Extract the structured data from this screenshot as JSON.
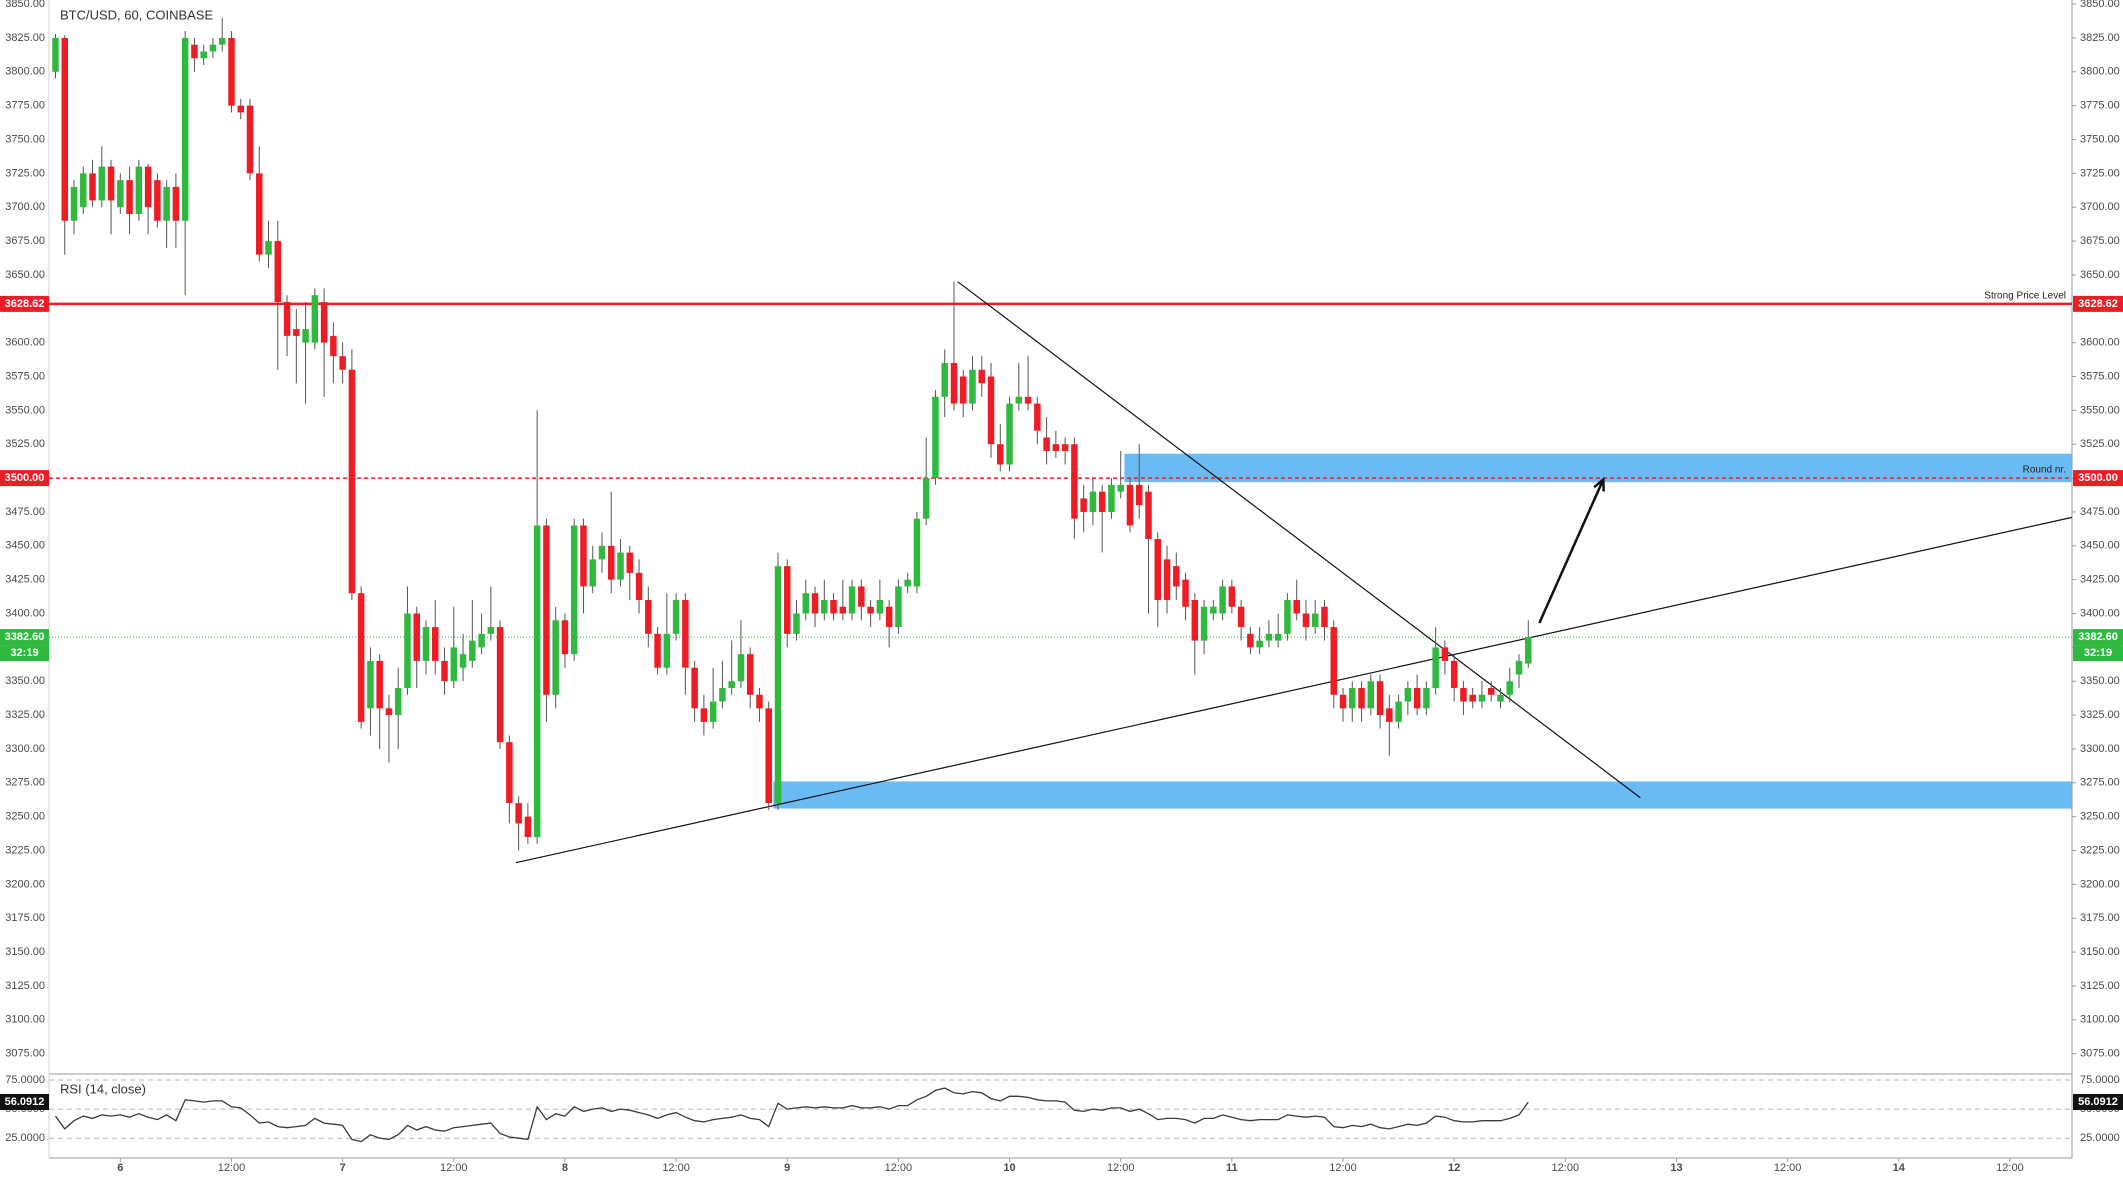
{
  "chart_data": {
    "type": "candlestick",
    "title": "BTC/USD, 60, COINBASE",
    "up_color": "#2fb93f",
    "down_color": "#ee1c24",
    "open": [
      3800,
      3825,
      3690,
      3700,
      3725,
      3705,
      3730,
      3700,
      3720,
      3695,
      3730,
      3720,
      3690,
      3715,
      3690,
      3820,
      3810,
      3815,
      3820,
      3825,
      3775,
      3775,
      3725,
      3665,
      3675,
      3630,
      3610,
      3600,
      3600,
      3630,
      3605,
      3590,
      3580,
      3415,
      3330,
      3365,
      3330,
      3325,
      3345,
      3400,
      3365,
      3390,
      3365,
      3350,
      3360,
      3365,
      3375,
      3385,
      3390,
      3305,
      3260,
      3250,
      3235,
      3465,
      3340,
      3395,
      3370,
      3465,
      3420,
      3440,
      3450,
      3425,
      3445,
      3430,
      3410,
      3385,
      3360,
      3385,
      3410,
      3360,
      3330,
      3320,
      3335,
      3345,
      3350,
      3370,
      3340,
      3330,
      3260,
      3435,
      3385,
      3400,
      3415,
      3400,
      3410,
      3405,
      3400,
      3420,
      3405,
      3400,
      3405,
      3390,
      3420,
      3420,
      3470,
      3500,
      3560,
      3585,
      3575,
      3555,
      3580,
      3575,
      3525,
      3510,
      3555,
      3560,
      3555,
      3530,
      3525,
      3525,
      3525,
      3485,
      3475,
      3490,
      3475,
      3490,
      3495,
      3495,
      3490,
      3455,
      3440,
      3435,
      3425,
      3410,
      3380,
      3400,
      3400,
      3420,
      3405,
      3385,
      3375,
      3380,
      3380,
      3385,
      3410,
      3400,
      3390,
      3405,
      3390,
      3340,
      3330,
      3345,
      3330,
      3350,
      3330,
      3320,
      3335,
      3345,
      3330,
      3345,
      3375,
      3365,
      3345,
      3340,
      3335,
      3345,
      3335,
      3340,
      3355,
      3363
    ],
    "high": [
      3828,
      3827,
      3720,
      3730,
      3735,
      3745,
      3735,
      3725,
      3730,
      3735,
      3732,
      3725,
      3720,
      3725,
      3830,
      3825,
      3820,
      3825,
      3840,
      3830,
      3780,
      3780,
      3745,
      3690,
      3690,
      3635,
      3625,
      3630,
      3640,
      3640,
      3615,
      3600,
      3595,
      3420,
      3375,
      3370,
      3340,
      3360,
      3420,
      3405,
      3395,
      3410,
      3375,
      3405,
      3385,
      3410,
      3400,
      3420,
      3395,
      3310,
      3265,
      3260,
      3550,
      3470,
      3405,
      3400,
      3470,
      3470,
      3450,
      3460,
      3490,
      3455,
      3450,
      3440,
      3420,
      3390,
      3415,
      3415,
      3415,
      3365,
      3340,
      3360,
      3365,
      3380,
      3395,
      3375,
      3345,
      3335,
      3445,
      3440,
      3410,
      3425,
      3420,
      3425,
      3415,
      3425,
      3425,
      3425,
      3410,
      3425,
      3410,
      3425,
      3430,
      3475,
      3530,
      3565,
      3595,
      3645,
      3580,
      3590,
      3590,
      3585,
      3540,
      3560,
      3585,
      3590,
      3560,
      3545,
      3535,
      3530,
      3530,
      3495,
      3500,
      3495,
      3500,
      3520,
      3500,
      3525,
      3495,
      3460,
      3450,
      3445,
      3430,
      3415,
      3410,
      3410,
      3425,
      3425,
      3410,
      3390,
      3390,
      3395,
      3400,
      3415,
      3425,
      3410,
      3410,
      3410,
      3395,
      3345,
      3350,
      3350,
      3355,
      3355,
      3340,
      3340,
      3350,
      3355,
      3350,
      3390,
      3380,
      3370,
      3350,
      3345,
      3350,
      3350,
      3345,
      3360,
      3370,
      3395
    ],
    "low": [
      3795,
      3665,
      3680,
      3695,
      3700,
      3700,
      3680,
      3695,
      3680,
      3690,
      3680,
      3685,
      3670,
      3670,
      3635,
      3800,
      3805,
      3810,
      3815,
      3770,
      3765,
      3720,
      3660,
      3655,
      3580,
      3590,
      3570,
      3555,
      3595,
      3560,
      3570,
      3570,
      3410,
      3315,
      3310,
      3300,
      3290,
      3300,
      3340,
      3345,
      3355,
      3355,
      3340,
      3345,
      3350,
      3360,
      3370,
      3380,
      3300,
      3245,
      3225,
      3230,
      3230,
      3320,
      3330,
      3360,
      3365,
      3400,
      3415,
      3430,
      3415,
      3420,
      3410,
      3400,
      3375,
      3355,
      3355,
      3380,
      3340,
      3320,
      3310,
      3315,
      3330,
      3340,
      3345,
      3330,
      3320,
      3255,
      3255,
      3375,
      3380,
      3395,
      3390,
      3395,
      3395,
      3395,
      3395,
      3395,
      3390,
      3395,
      3375,
      3385,
      3415,
      3415,
      3465,
      3495,
      3545,
      3550,
      3545,
      3550,
      3560,
      3515,
      3505,
      3505,
      3550,
      3550,
      3525,
      3510,
      3515,
      3510,
      3455,
      3460,
      3465,
      3445,
      3470,
      3485,
      3460,
      3470,
      3400,
      3390,
      3400,
      3410,
      3395,
      3355,
      3370,
      3395,
      3395,
      3400,
      3380,
      3370,
      3370,
      3375,
      3375,
      3380,
      3395,
      3380,
      3385,
      3380,
      3330,
      3320,
      3320,
      3320,
      3325,
      3315,
      3295,
      3315,
      3325,
      3325,
      3325,
      3340,
      3355,
      3335,
      3325,
      3330,
      3330,
      3335,
      3330,
      3335,
      3345,
      3360
    ],
    "close": [
      3825,
      3690,
      3715,
      3725,
      3705,
      3730,
      3705,
      3720,
      3695,
      3730,
      3700,
      3690,
      3715,
      3690,
      3825,
      3810,
      3815,
      3820,
      3825,
      3775,
      3770,
      3725,
      3665,
      3675,
      3630,
      3605,
      3605,
      3610,
      3635,
      3600,
      3590,
      3580,
      3415,
      3320,
      3365,
      3330,
      3325,
      3345,
      3400,
      3365,
      3390,
      3365,
      3350,
      3375,
      3370,
      3380,
      3385,
      3390,
      3305,
      3260,
      3245,
      3235,
      3465,
      3340,
      3395,
      3370,
      3465,
      3420,
      3440,
      3450,
      3425,
      3445,
      3430,
      3410,
      3385,
      3360,
      3385,
      3410,
      3360,
      3330,
      3320,
      3335,
      3345,
      3350,
      3370,
      3340,
      3330,
      3260,
      3435,
      3385,
      3400,
      3415,
      3400,
      3410,
      3400,
      3400,
      3420,
      3405,
      3400,
      3410,
      3390,
      3420,
      3425,
      3470,
      3500,
      3560,
      3585,
      3555,
      3555,
      3580,
      3570,
      3525,
      3510,
      3555,
      3560,
      3555,
      3535,
      3520,
      3520,
      3520,
      3470,
      3475,
      3490,
      3475,
      3495,
      3495,
      3465,
      3480,
      3455,
      3410,
      3410,
      3420,
      3405,
      3380,
      3405,
      3405,
      3420,
      3405,
      3390,
      3375,
      3380,
      3385,
      3385,
      3410,
      3400,
      3390,
      3400,
      3390,
      3340,
      3330,
      3345,
      3330,
      3350,
      3325,
      3320,
      3335,
      3345,
      3330,
      3345,
      3375,
      3365,
      3345,
      3335,
      3335,
      3340,
      3340,
      3340,
      3350,
      3365,
      3382.6
    ],
    "last_price_label": "3382.60",
    "countdown": "32:19",
    "xlim": [
      -0.7,
      217.7
    ],
    "xticks": [
      {
        "value": 7,
        "label": "6"
      },
      {
        "value": 19,
        "label": "12:00"
      },
      {
        "value": 31,
        "label": "7"
      },
      {
        "value": 43,
        "label": "12:00"
      },
      {
        "value": 55,
        "label": "8"
      },
      {
        "value": 67,
        "label": "12:00"
      },
      {
        "value": 79,
        "label": "9"
      },
      {
        "value": 91,
        "label": "12:00"
      },
      {
        "value": 103,
        "label": "10"
      },
      {
        "value": 115,
        "label": "12:00"
      },
      {
        "value": 127,
        "label": "11"
      },
      {
        "value": 139,
        "label": "12:00"
      },
      {
        "value": 151,
        "label": "12"
      },
      {
        "value": 163,
        "label": "12:00"
      },
      {
        "value": 175,
        "label": "13"
      },
      {
        "value": 187,
        "label": "12:00"
      },
      {
        "value": 199,
        "label": "14"
      },
      {
        "value": 211,
        "label": "12:00"
      }
    ],
    "ylim": [
      3060,
      3853
    ],
    "yticks": [
      {
        "value": 3075,
        "label": "3075.00"
      },
      {
        "value": 3100,
        "label": "3100.00"
      },
      {
        "value": 3125,
        "label": "3125.00"
      },
      {
        "value": 3150,
        "label": "3150.00"
      },
      {
        "value": 3175,
        "label": "3175.00"
      },
      {
        "value": 3200,
        "label": "3200.00"
      },
      {
        "value": 3225,
        "label": "3225.00"
      },
      {
        "value": 3250,
        "label": "3250.00"
      },
      {
        "value": 3275,
        "label": "3275.00"
      },
      {
        "value": 3300,
        "label": "3300.00"
      },
      {
        "value": 3325,
        "label": "3325.00"
      },
      {
        "value": 3350,
        "label": "3350.00"
      },
      {
        "value": 3375,
        "label": "3375.00"
      },
      {
        "value": 3400,
        "label": "3400.00"
      },
      {
        "value": 3425,
        "label": "3425.00"
      },
      {
        "value": 3450,
        "label": "3450.00"
      },
      {
        "value": 3475,
        "label": "3475.00"
      },
      {
        "value": 3500,
        "label": "3500.00"
      },
      {
        "value": 3525,
        "label": "3525.00"
      },
      {
        "value": 3550,
        "label": "3550.00"
      },
      {
        "value": 3575,
        "label": "3575.00"
      },
      {
        "value": 3600,
        "label": "3600.00"
      },
      {
        "value": 3625,
        "label": "3625.00"
      },
      {
        "value": 3650,
        "label": "3650.00"
      },
      {
        "value": 3675,
        "label": "3675.00"
      },
      {
        "value": 3700,
        "label": "3700.00"
      },
      {
        "value": 3725,
        "label": "3725.00"
      },
      {
        "value": 3750,
        "label": "3750.00"
      },
      {
        "value": 3775,
        "label": "3775.00"
      },
      {
        "value": 3800,
        "label": "3800.00"
      },
      {
        "value": 3825,
        "label": "3825.00"
      },
      {
        "value": 3850,
        "label": "3850.00"
      }
    ],
    "levels": [
      {
        "label": "Strong Price Level",
        "value": 3628.62,
        "value_label": "3628.62",
        "color": "#ee1c24",
        "style": "solid"
      },
      {
        "label": "Round nr.",
        "value": 3500,
        "value_label": "3500.00",
        "color": "#ee1c24",
        "style": "dashed"
      }
    ],
    "zones": [
      {
        "x_from": 115.4,
        "top": 3518,
        "bottom": 3497
      },
      {
        "x_from": 77.5,
        "top": 3276,
        "bottom": 3256
      }
    ],
    "zone_color": "#5ab2f2",
    "trendlines": [
      {
        "x": [
          97.4,
          171.1
        ],
        "y": [
          3645,
          3264
        ]
      },
      {
        "x": [
          49.7,
          217.7
        ],
        "y": [
          3216,
          3471
        ]
      }
    ],
    "arrow": {
      "x": [
        160.2,
        167.1
      ],
      "y": [
        3393,
        3499
      ]
    },
    "rsi": {
      "title": "RSI (14, close)",
      "color": "#3a3a3a",
      "values": [
        44,
        33,
        40,
        44,
        42,
        45,
        44,
        45,
        43,
        46,
        43,
        41,
        45,
        40,
        58,
        57,
        56,
        57,
        57,
        52,
        51,
        45,
        38,
        39,
        35,
        34,
        35,
        36,
        42,
        38,
        37,
        36,
        24,
        22,
        28,
        25,
        24,
        28,
        36,
        32,
        35,
        32,
        31,
        34,
        35,
        36,
        37,
        38,
        29,
        26,
        25,
        24,
        52,
        41,
        46,
        44,
        52,
        48,
        50,
        51,
        48,
        50,
        49,
        47,
        45,
        42,
        45,
        47,
        43,
        40,
        39,
        41,
        42,
        43,
        45,
        42,
        41,
        35,
        55,
        50,
        51,
        52,
        51,
        52,
        51,
        51,
        53,
        51,
        51,
        52,
        50,
        53,
        53,
        58,
        61,
        66,
        68,
        64,
        63,
        65,
        64,
        59,
        57,
        61,
        61,
        60,
        58,
        57,
        57,
        56,
        49,
        48,
        50,
        49,
        51,
        51,
        48,
        50,
        46,
        41,
        42,
        42,
        41,
        38,
        42,
        42,
        45,
        43,
        41,
        40,
        41,
        41,
        41,
        45,
        44,
        43,
        44,
        43,
        35,
        34,
        36,
        35,
        37,
        34,
        33,
        35,
        37,
        36,
        38,
        44,
        43,
        40,
        39,
        39,
        40,
        40,
        40,
        42,
        45,
        56.0912
      ],
      "ylim": [
        8,
        78.4
      ],
      "yticks": [
        {
          "value": 25,
          "label": "25.0000"
        },
        {
          "value": 50,
          "label": "50.0000"
        },
        {
          "value": 75,
          "label": "75.0000"
        }
      ]
    }
  }
}
